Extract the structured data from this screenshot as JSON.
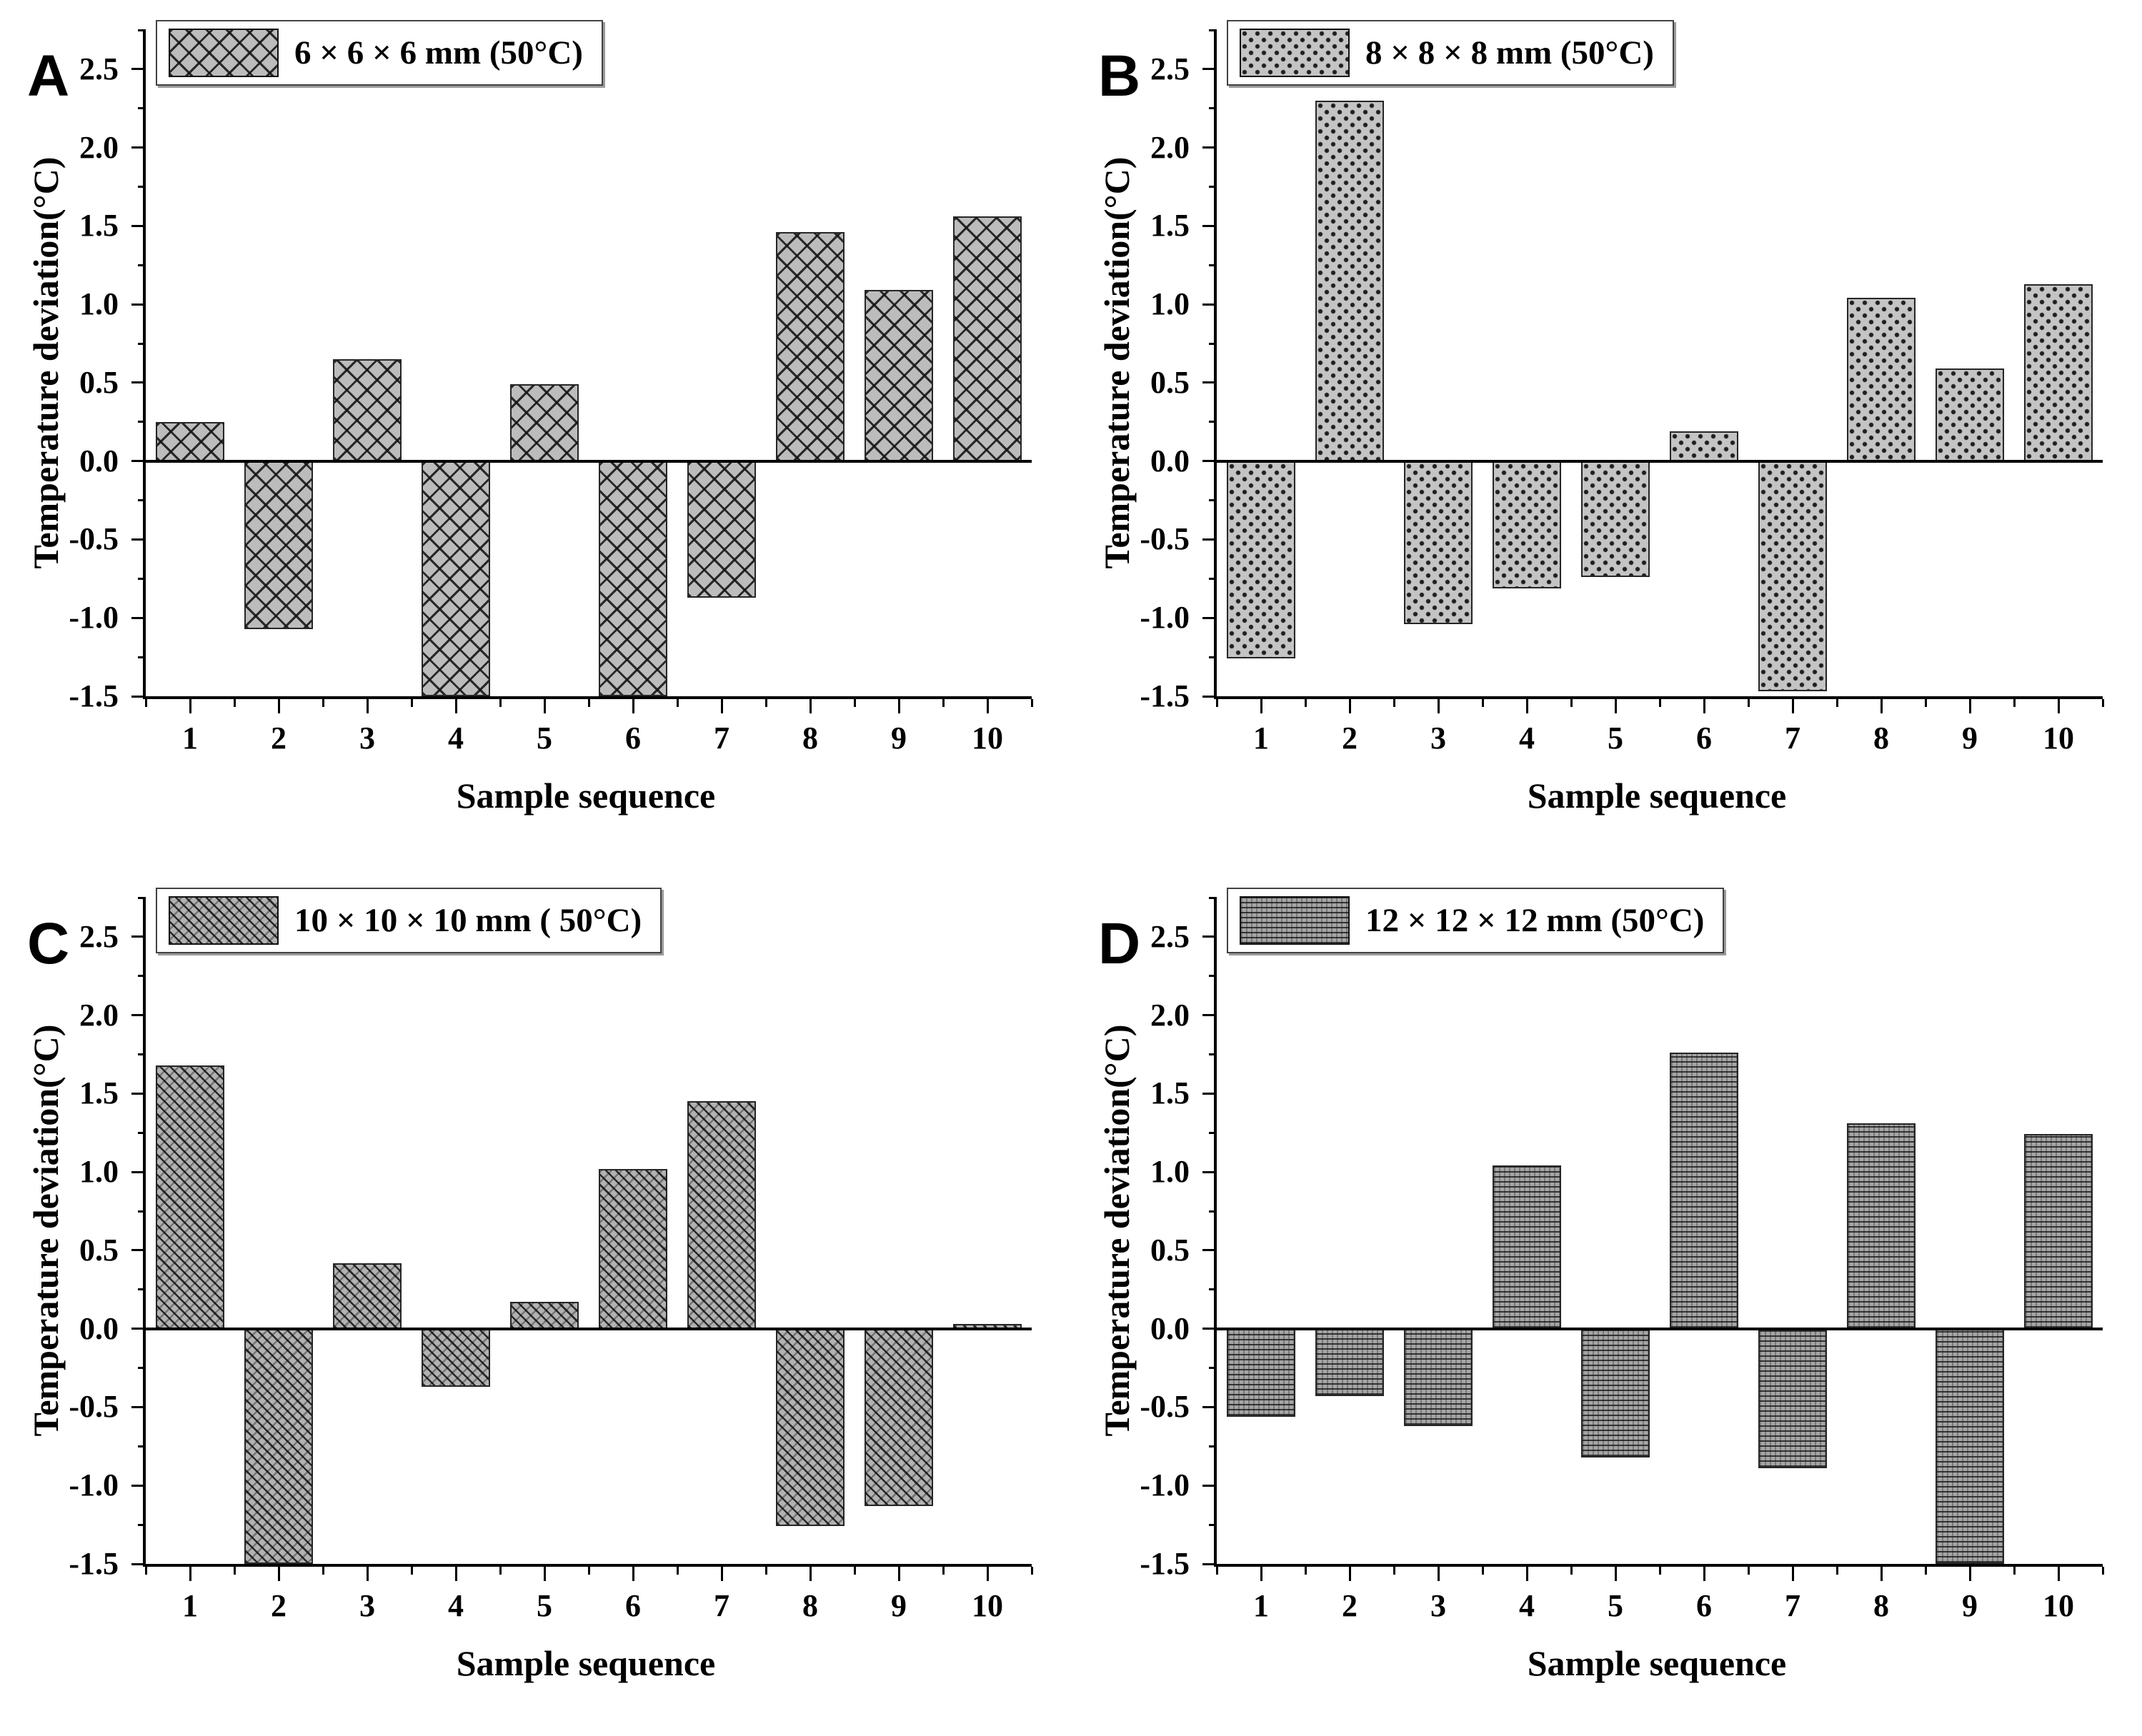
{
  "page": {
    "background": "#ffffff"
  },
  "chart_data": [
    {
      "panel_label": "A",
      "type": "bar",
      "legend": "6 × 6 × 6 mm (50°C)",
      "legend_position": "top-left",
      "pattern": "crosshatch",
      "bar_fill": "#bcbcbc",
      "hatch_color": "#141414",
      "xlabel": "Sample sequence",
      "ylabel": "Temperature deviation(°C)",
      "categories": [
        "1",
        "2",
        "3",
        "4",
        "5",
        "6",
        "7",
        "8",
        "9",
        "10"
      ],
      "values": [
        0.25,
        -1.07,
        0.65,
        -1.5,
        0.49,
        -1.5,
        -0.87,
        1.46,
        1.09,
        1.56
      ],
      "ylim": [
        -1.5,
        2.75
      ],
      "ytick_values": [
        -1.5,
        -1.0,
        -0.5,
        0.0,
        0.5,
        1.0,
        1.5,
        2.0,
        2.5
      ],
      "ytick_labels": [
        "-1.5",
        "-1.0",
        "-0.5",
        "0.0",
        "0.5",
        "1.0",
        "1.5",
        "2.0",
        "2.5"
      ],
      "grid": false,
      "spines": [
        "left",
        "bottom"
      ]
    },
    {
      "panel_label": "B",
      "type": "bar",
      "legend": "8 × 8 × 8 mm (50°C)",
      "legend_position": "top-left",
      "pattern": "dots",
      "bar_fill": "#c4c4c4",
      "hatch_color": "#1f1f1f",
      "xlabel": "Sample sequence",
      "ylabel": "Temperature deviation(°C)",
      "categories": [
        "1",
        "2",
        "3",
        "4",
        "5",
        "6",
        "7",
        "8",
        "9",
        "10"
      ],
      "values": [
        -1.26,
        2.3,
        -1.04,
        -0.81,
        -0.74,
        0.19,
        -1.47,
        1.04,
        0.59,
        1.13
      ],
      "ylim": [
        -1.5,
        2.75
      ],
      "ytick_values": [
        -1.5,
        -1.0,
        -0.5,
        0.0,
        0.5,
        1.0,
        1.5,
        2.0,
        2.5
      ],
      "ytick_labels": [
        "-1.5",
        "-1.0",
        "-0.5",
        "0.0",
        "0.5",
        "1.0",
        "1.5",
        "2.0",
        "2.5"
      ],
      "grid": false,
      "spines": [
        "left",
        "bottom"
      ]
    },
    {
      "panel_label": "C",
      "type": "bar",
      "legend": "10 × 10 × 10 mm ( 50°C)",
      "legend_position": "top-left",
      "pattern": "weave",
      "bar_fill": "#b2b2b2",
      "hatch_color": "#0f0f0f",
      "xlabel": "Sample sequence",
      "ylabel": "Temperature deviation(°C)",
      "categories": [
        "1",
        "2",
        "3",
        "4",
        "5",
        "6",
        "7",
        "8",
        "9",
        "10"
      ],
      "values": [
        1.68,
        -1.5,
        0.42,
        -0.37,
        0.17,
        1.02,
        1.45,
        -1.26,
        -1.13,
        0.03
      ],
      "ylim": [
        -1.5,
        2.75
      ],
      "ytick_values": [
        -1.5,
        -1.0,
        -0.5,
        0.0,
        0.5,
        1.0,
        1.5,
        2.0,
        2.5
      ],
      "ytick_labels": [
        "-1.5",
        "-1.0",
        "-0.5",
        "0.0",
        "0.5",
        "1.0",
        "1.5",
        "2.0",
        "2.5"
      ],
      "grid": false,
      "spines": [
        "left",
        "bottom"
      ]
    },
    {
      "panel_label": "D",
      "type": "bar",
      "legend": "12 × 12 × 12 mm (50°C)",
      "legend_position": "top-left",
      "pattern": "zigzag",
      "bar_fill": "#a5a5a5",
      "hatch_color": "#141414",
      "xlabel": "Sample sequence",
      "ylabel": "Temperature deviation(°C)",
      "categories": [
        "1",
        "2",
        "3",
        "4",
        "5",
        "6",
        "7",
        "8",
        "9",
        "10"
      ],
      "values": [
        -0.56,
        -0.43,
        -0.62,
        1.04,
        -0.82,
        1.76,
        -0.89,
        1.31,
        -1.5,
        1.24
      ],
      "ylim": [
        -1.5,
        2.75
      ],
      "ytick_values": [
        -1.5,
        -1.0,
        -0.5,
        0.0,
        0.5,
        1.0,
        1.5,
        2.0,
        2.5
      ],
      "ytick_labels": [
        "-1.5",
        "-1.0",
        "-0.5",
        "0.0",
        "0.5",
        "1.0",
        "1.5",
        "2.0",
        "2.5"
      ],
      "grid": false,
      "spines": [
        "left",
        "bottom"
      ]
    }
  ]
}
